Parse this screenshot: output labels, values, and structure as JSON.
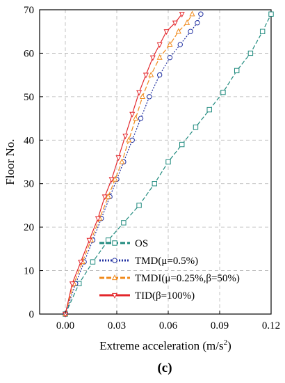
{
  "chart_data": {
    "type": "line",
    "panel_label": "(c)",
    "xlabel": "Extreme acceleration (m/s²)",
    "xlabel_main": "Extreme acceleration (m/s",
    "xlabel_sup": "2",
    "xlabel_tail": ")",
    "ylabel": "Floor No.",
    "xlim": [
      -0.015,
      0.12
    ],
    "ylim": [
      0,
      70
    ],
    "xticks": [
      "0.00",
      "0.03",
      "0.06",
      "0.09",
      "0.12"
    ],
    "yticks": [
      "0",
      "10",
      "20",
      "30",
      "40",
      "50",
      "60",
      "70"
    ],
    "grid": true,
    "legend_position": "lower-left",
    "series": [
      {
        "name": "OS",
        "color": "#1f8a7e",
        "marker": "square",
        "x": [
          0.0,
          0.008,
          0.016,
          0.025,
          0.034,
          0.043,
          0.052,
          0.06,
          0.068,
          0.076,
          0.084,
          0.092,
          0.1,
          0.108,
          0.115,
          0.12
        ],
        "y": [
          0,
          7,
          12,
          17,
          21,
          25,
          30,
          35,
          39,
          43,
          47,
          51,
          56,
          60,
          65,
          69
        ]
      },
      {
        "name": "TMD(μ=0.5%)",
        "color": "#1f2fa0",
        "marker": "circle",
        "x": [
          0.0,
          0.006,
          0.011,
          0.016,
          0.021,
          0.026,
          0.03,
          0.034,
          0.039,
          0.044,
          0.049,
          0.055,
          0.061,
          0.067,
          0.073,
          0.077,
          0.079
        ],
        "y": [
          0,
          7,
          12,
          17,
          22,
          27,
          31,
          35,
          40,
          45,
          50,
          55,
          59,
          62,
          65,
          67,
          69
        ]
      },
      {
        "name": "TMDI(μ=0.25%,β=50%)",
        "color": "#f08a1c",
        "marker": "triangle-up",
        "x": [
          0.0,
          0.005,
          0.01,
          0.015,
          0.02,
          0.025,
          0.029,
          0.033,
          0.037,
          0.041,
          0.045,
          0.05,
          0.055,
          0.061,
          0.066,
          0.071,
          0.074
        ],
        "y": [
          0,
          7,
          12,
          17,
          22,
          27,
          31,
          35,
          40,
          45,
          50,
          55,
          59,
          62,
          65,
          67,
          69
        ]
      },
      {
        "name": "TID(β=100%)",
        "color": "#e3262b",
        "marker": "triangle-down",
        "x": [
          0.0,
          0.004,
          0.009,
          0.014,
          0.019,
          0.023,
          0.027,
          0.031,
          0.035,
          0.039,
          0.043,
          0.047,
          0.051,
          0.055,
          0.059,
          0.064,
          0.068
        ],
        "y": [
          0,
          7,
          12,
          17,
          22,
          27,
          31,
          36,
          41,
          46,
          51,
          55,
          59,
          62,
          65,
          67,
          69
        ]
      }
    ]
  }
}
